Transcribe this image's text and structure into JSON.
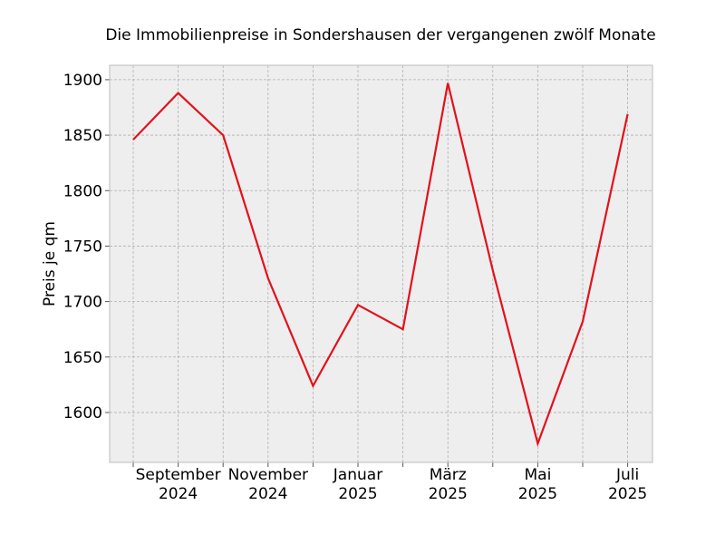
{
  "chart_data": {
    "type": "line",
    "title": "Die Immobilienpreise in Sondershausen der vergangenen zwölf Monate",
    "xlabel": "",
    "ylabel": "Preis je qm",
    "x": [
      "2024-08",
      "2024-09",
      "2024-10",
      "2024-11",
      "2024-12",
      "2025-01",
      "2025-02",
      "2025-03",
      "2025-04",
      "2025-05",
      "2025-06",
      "2025-07"
    ],
    "x_tick_labels": [
      {
        "x": "2024-09",
        "line1": "September",
        "line2": "2024"
      },
      {
        "x": "2024-11",
        "line1": "November",
        "line2": "2024"
      },
      {
        "x": "2025-01",
        "line1": "Januar",
        "line2": "2025"
      },
      {
        "x": "2025-03",
        "line1": "März",
        "line2": "2025"
      },
      {
        "x": "2025-05",
        "line1": "Mai",
        "line2": "2025"
      },
      {
        "x": "2025-07",
        "line1": "Juli",
        "line2": "2025"
      }
    ],
    "series": [
      {
        "values": [
          1846,
          1888,
          1850,
          1721,
          1624,
          1697,
          1675,
          1897,
          1728,
          1572,
          1682,
          1869
        ],
        "color": "#e3111b"
      }
    ],
    "ylim": [
      1555,
      1913
    ],
    "yticks": [
      1600,
      1650,
      1700,
      1750,
      1800,
      1850,
      1900
    ],
    "grid": true,
    "background": "#eeeeee",
    "grid_color": "#b0b0b0"
  }
}
